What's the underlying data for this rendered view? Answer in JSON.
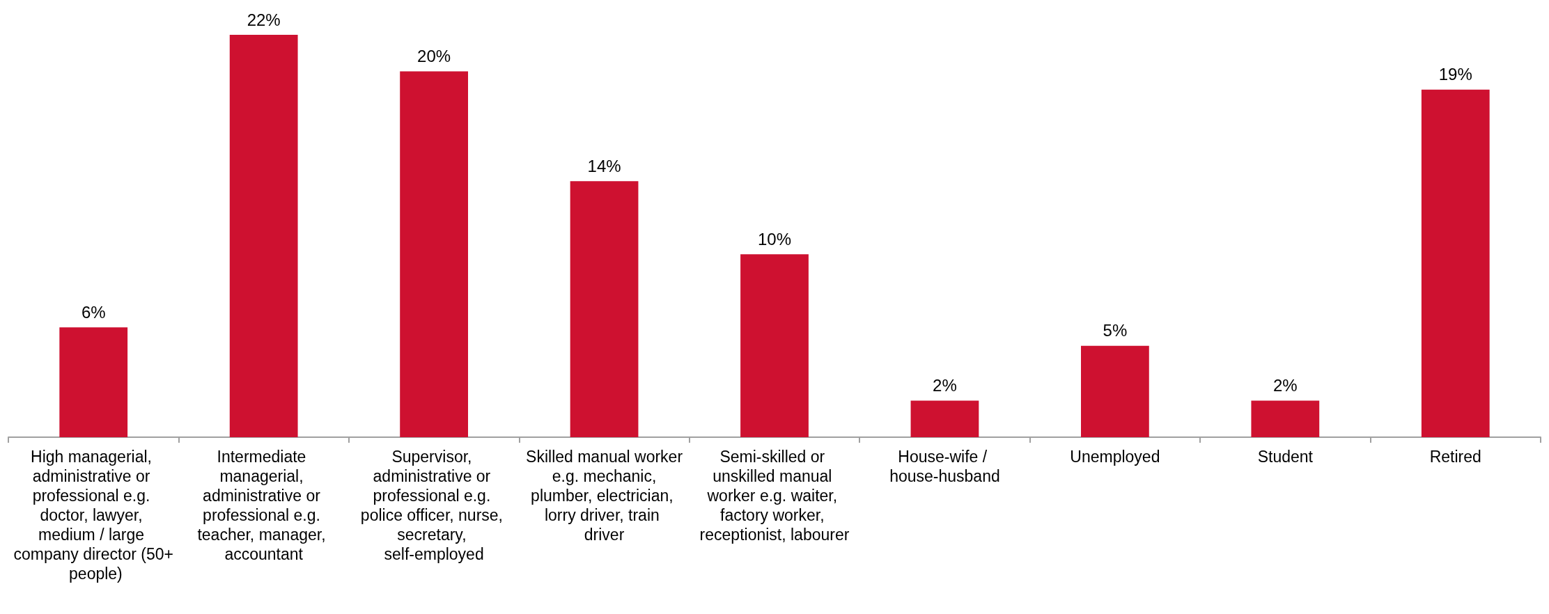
{
  "chart_data": {
    "type": "bar",
    "categories": [
      "High managerial, administrative or professional e.g. doctor, lawyer, medium / large company director (50+ people)",
      "Intermediate managerial, administrative or professional e.g. teacher, manager, accountant",
      "Supervisor, administrative or professional e.g. police officer, nurse, secretary, self-employed",
      "Skilled manual worker e.g. mechanic, plumber, electrician, lorry driver, train driver",
      "Semi-skilled or unskilled manual worker e.g. waiter, factory worker, receptionist, labourer",
      "House-wife / house-husband",
      "Unemployed",
      "Student",
      "Retired"
    ],
    "values": [
      6,
      22,
      20,
      14,
      10,
      2,
      5,
      2,
      19
    ],
    "value_labels": [
      "6%",
      "22%",
      "20%",
      "14%",
      "10%",
      "2%",
      "5%",
      "2%",
      "19%"
    ],
    "color": "#ce1130"
  }
}
